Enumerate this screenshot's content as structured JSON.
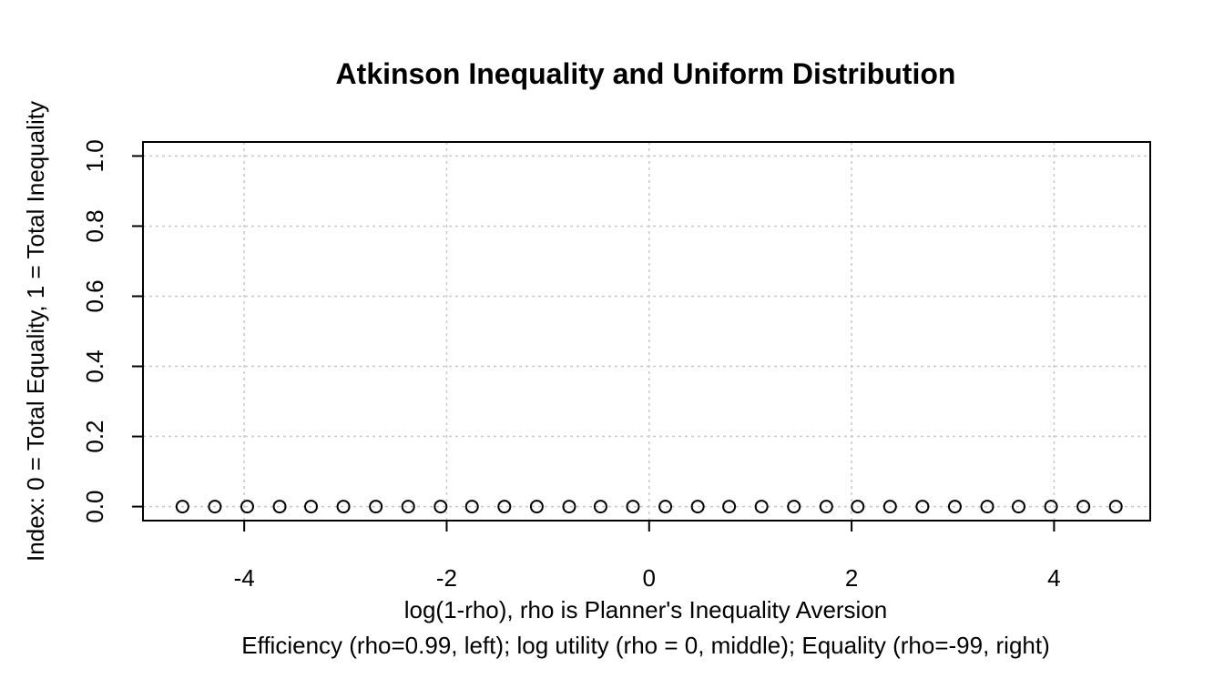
{
  "chart_data": {
    "type": "scatter",
    "title": "Atkinson Inequality and Uniform Distribution",
    "xlabel": "log(1-rho), rho is Planner's Inequality Aversion",
    "xlabel2": "Efficiency (rho=0.99, left); log utility (rho = 0, middle); Equality (rho=-99, right)",
    "ylabel": "Index: 0 = Total Equality, 1 = Total Inequality",
    "xlim": [
      -5.0,
      4.95
    ],
    "ylim": [
      -0.04,
      1.04
    ],
    "x_ticks": [
      -4,
      -2,
      0,
      2,
      4
    ],
    "x_tick_labels": [
      "-4",
      "-2",
      "0",
      "2",
      "4"
    ],
    "y_ticks": [
      0.0,
      0.2,
      0.4,
      0.6,
      0.8,
      1.0
    ],
    "y_tick_labels": [
      "0.0",
      "0.2",
      "0.4",
      "0.6",
      "0.8",
      "1.0"
    ],
    "grid": true,
    "x": [
      -4.61,
      -4.29,
      -3.97,
      -3.65,
      -3.34,
      -3.02,
      -2.7,
      -2.38,
      -2.06,
      -1.75,
      -1.43,
      -1.11,
      -0.79,
      -0.48,
      -0.16,
      0.16,
      0.48,
      0.79,
      1.11,
      1.43,
      1.75,
      2.06,
      2.38,
      2.7,
      3.02,
      3.34,
      3.65,
      3.97,
      4.29,
      4.61
    ],
    "y": [
      0,
      0,
      0,
      0,
      0,
      0,
      0,
      0,
      0,
      0,
      0,
      0,
      0,
      0,
      0,
      0,
      0,
      0,
      0,
      0,
      0,
      0,
      0,
      0,
      0,
      0,
      0,
      0,
      0,
      0
    ]
  }
}
